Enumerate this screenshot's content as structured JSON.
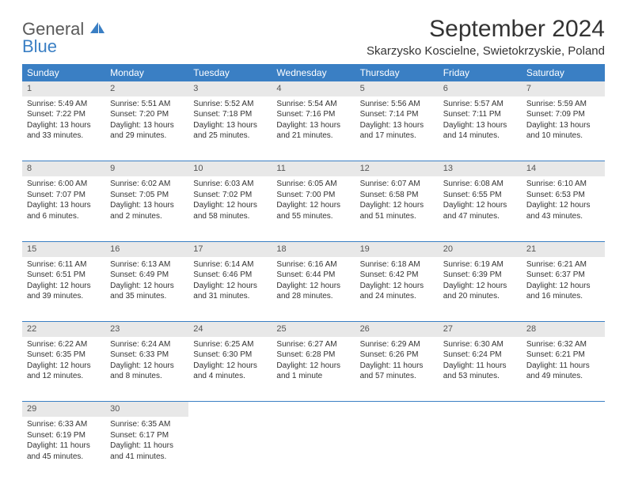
{
  "logo": {
    "line1": "General",
    "line2": "Blue"
  },
  "title": "September 2024",
  "location": "Skarzysko Koscielne, Swietokrzyskie, Poland",
  "colors": {
    "header_bg": "#3a7fc4",
    "header_text": "#ffffff",
    "daynum_bg": "#e8e8e8",
    "text": "#333333",
    "row_border": "#3a7fc4"
  },
  "typography": {
    "title_fontsize": 30,
    "location_fontsize": 15,
    "weekday_fontsize": 12,
    "cell_fontsize": 10
  },
  "weekdays": [
    "Sunday",
    "Monday",
    "Tuesday",
    "Wednesday",
    "Thursday",
    "Friday",
    "Saturday"
  ],
  "weeks": [
    [
      {
        "day": "1",
        "sunrise": "5:49 AM",
        "sunset": "7:22 PM",
        "daylight_h": 13,
        "daylight_m": 33
      },
      {
        "day": "2",
        "sunrise": "5:51 AM",
        "sunset": "7:20 PM",
        "daylight_h": 13,
        "daylight_m": 29
      },
      {
        "day": "3",
        "sunrise": "5:52 AM",
        "sunset": "7:18 PM",
        "daylight_h": 13,
        "daylight_m": 25
      },
      {
        "day": "4",
        "sunrise": "5:54 AM",
        "sunset": "7:16 PM",
        "daylight_h": 13,
        "daylight_m": 21
      },
      {
        "day": "5",
        "sunrise": "5:56 AM",
        "sunset": "7:14 PM",
        "daylight_h": 13,
        "daylight_m": 17
      },
      {
        "day": "6",
        "sunrise": "5:57 AM",
        "sunset": "7:11 PM",
        "daylight_h": 13,
        "daylight_m": 14
      },
      {
        "day": "7",
        "sunrise": "5:59 AM",
        "sunset": "7:09 PM",
        "daylight_h": 13,
        "daylight_m": 10
      }
    ],
    [
      {
        "day": "8",
        "sunrise": "6:00 AM",
        "sunset": "7:07 PM",
        "daylight_h": 13,
        "daylight_m": 6
      },
      {
        "day": "9",
        "sunrise": "6:02 AM",
        "sunset": "7:05 PM",
        "daylight_h": 13,
        "daylight_m": 2
      },
      {
        "day": "10",
        "sunrise": "6:03 AM",
        "sunset": "7:02 PM",
        "daylight_h": 12,
        "daylight_m": 58
      },
      {
        "day": "11",
        "sunrise": "6:05 AM",
        "sunset": "7:00 PM",
        "daylight_h": 12,
        "daylight_m": 55
      },
      {
        "day": "12",
        "sunrise": "6:07 AM",
        "sunset": "6:58 PM",
        "daylight_h": 12,
        "daylight_m": 51
      },
      {
        "day": "13",
        "sunrise": "6:08 AM",
        "sunset": "6:55 PM",
        "daylight_h": 12,
        "daylight_m": 47
      },
      {
        "day": "14",
        "sunrise": "6:10 AM",
        "sunset": "6:53 PM",
        "daylight_h": 12,
        "daylight_m": 43
      }
    ],
    [
      {
        "day": "15",
        "sunrise": "6:11 AM",
        "sunset": "6:51 PM",
        "daylight_h": 12,
        "daylight_m": 39
      },
      {
        "day": "16",
        "sunrise": "6:13 AM",
        "sunset": "6:49 PM",
        "daylight_h": 12,
        "daylight_m": 35
      },
      {
        "day": "17",
        "sunrise": "6:14 AM",
        "sunset": "6:46 PM",
        "daylight_h": 12,
        "daylight_m": 31
      },
      {
        "day": "18",
        "sunrise": "6:16 AM",
        "sunset": "6:44 PM",
        "daylight_h": 12,
        "daylight_m": 28
      },
      {
        "day": "19",
        "sunrise": "6:18 AM",
        "sunset": "6:42 PM",
        "daylight_h": 12,
        "daylight_m": 24
      },
      {
        "day": "20",
        "sunrise": "6:19 AM",
        "sunset": "6:39 PM",
        "daylight_h": 12,
        "daylight_m": 20
      },
      {
        "day": "21",
        "sunrise": "6:21 AM",
        "sunset": "6:37 PM",
        "daylight_h": 12,
        "daylight_m": 16
      }
    ],
    [
      {
        "day": "22",
        "sunrise": "6:22 AM",
        "sunset": "6:35 PM",
        "daylight_h": 12,
        "daylight_m": 12
      },
      {
        "day": "23",
        "sunrise": "6:24 AM",
        "sunset": "6:33 PM",
        "daylight_h": 12,
        "daylight_m": 8
      },
      {
        "day": "24",
        "sunrise": "6:25 AM",
        "sunset": "6:30 PM",
        "daylight_h": 12,
        "daylight_m": 4
      },
      {
        "day": "25",
        "sunrise": "6:27 AM",
        "sunset": "6:28 PM",
        "daylight_h": 12,
        "daylight_m": 1,
        "minute_word": "minute"
      },
      {
        "day": "26",
        "sunrise": "6:29 AM",
        "sunset": "6:26 PM",
        "daylight_h": 11,
        "daylight_m": 57
      },
      {
        "day": "27",
        "sunrise": "6:30 AM",
        "sunset": "6:24 PM",
        "daylight_h": 11,
        "daylight_m": 53
      },
      {
        "day": "28",
        "sunrise": "6:32 AM",
        "sunset": "6:21 PM",
        "daylight_h": 11,
        "daylight_m": 49
      }
    ],
    [
      {
        "day": "29",
        "sunrise": "6:33 AM",
        "sunset": "6:19 PM",
        "daylight_h": 11,
        "daylight_m": 45
      },
      {
        "day": "30",
        "sunrise": "6:35 AM",
        "sunset": "6:17 PM",
        "daylight_h": 11,
        "daylight_m": 41
      },
      null,
      null,
      null,
      null,
      null
    ]
  ],
  "labels": {
    "sunrise": "Sunrise:",
    "sunset": "Sunset:",
    "daylight": "Daylight:",
    "hours": "hours",
    "and": "and",
    "minutes": "minutes."
  }
}
